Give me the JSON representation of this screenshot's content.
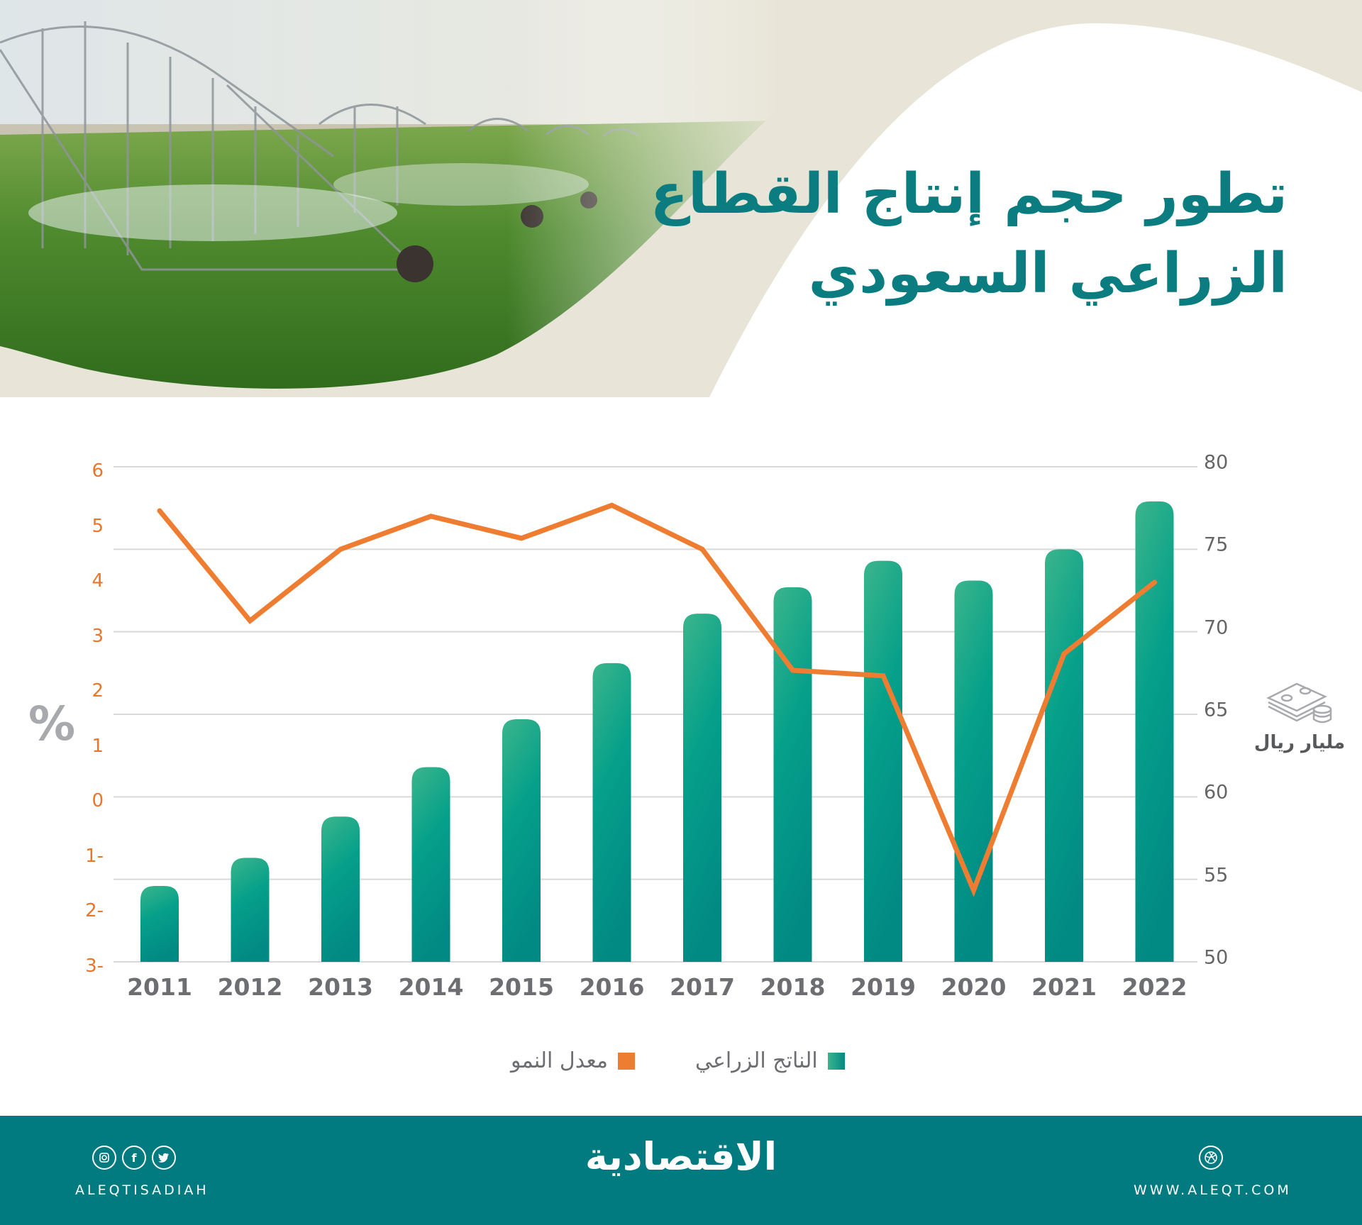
{
  "title": {
    "line1": "تطور حجم إنتاج القطاع",
    "line2": "الزراعي السعودي"
  },
  "colors": {
    "title": "#0b7d80",
    "bar_top": "#3bb58b",
    "bar_mid": "#05a08a",
    "bar_bottom": "#018a84",
    "line": "#ee7d31",
    "left_axis": "#e8772b",
    "right_axis": "#666666",
    "gridline": "#d9d9d9",
    "footer": "#017a80",
    "header_beige": "#e8e5d8"
  },
  "axes": {
    "left_unit": "%",
    "left_ticks": [
      "6",
      "5",
      "4",
      "3",
      "2",
      "1",
      "0",
      "1-",
      "2-",
      "3-"
    ],
    "right_unit": "مليار ريال",
    "right_unit_icon": "money-stack-icon",
    "right_ticks": [
      "80",
      "75",
      "70",
      "65",
      "60",
      "55",
      "50"
    ]
  },
  "legend": {
    "bars": "الناتج الزراعي",
    "line": "معدل النمو"
  },
  "chart_data": {
    "type": "bar",
    "title": "تطور حجم إنتاج القطاع الزراعي السعودي",
    "categories": [
      "2011",
      "2012",
      "2013",
      "2014",
      "2015",
      "2016",
      "2017",
      "2018",
      "2019",
      "2020",
      "2021",
      "2022"
    ],
    "series": [
      {
        "name": "الناتج الزراعي",
        "type": "bar",
        "axis": "right",
        "unit": "مليار ريال",
        "values": [
          54.6,
          56.3,
          58.8,
          61.8,
          64.7,
          68.1,
          71.1,
          72.7,
          74.3,
          73.1,
          75.0,
          77.9
        ]
      },
      {
        "name": "معدل النمو",
        "type": "line",
        "axis": "left",
        "unit": "%",
        "values": [
          5.2,
          3.2,
          4.5,
          5.1,
          4.7,
          5.3,
          4.5,
          2.3,
          2.2,
          -1.7,
          2.6,
          3.9
        ]
      }
    ],
    "xlabel": "",
    "ylabel_left": "%",
    "ylabel_right": "مليار ريال",
    "ylim_left": [
      -3,
      6
    ],
    "ylim_right": [
      50,
      80
    ],
    "grid": true,
    "legend_position": "bottom"
  },
  "footer": {
    "social_icons": [
      "instagram-icon",
      "facebook-icon",
      "twitter-icon"
    ],
    "handle": "ALEQTISADIAH",
    "logo": "الاقتصادية",
    "web_icon": "globe-icon",
    "url": "WWW.ALEQT.COM"
  }
}
